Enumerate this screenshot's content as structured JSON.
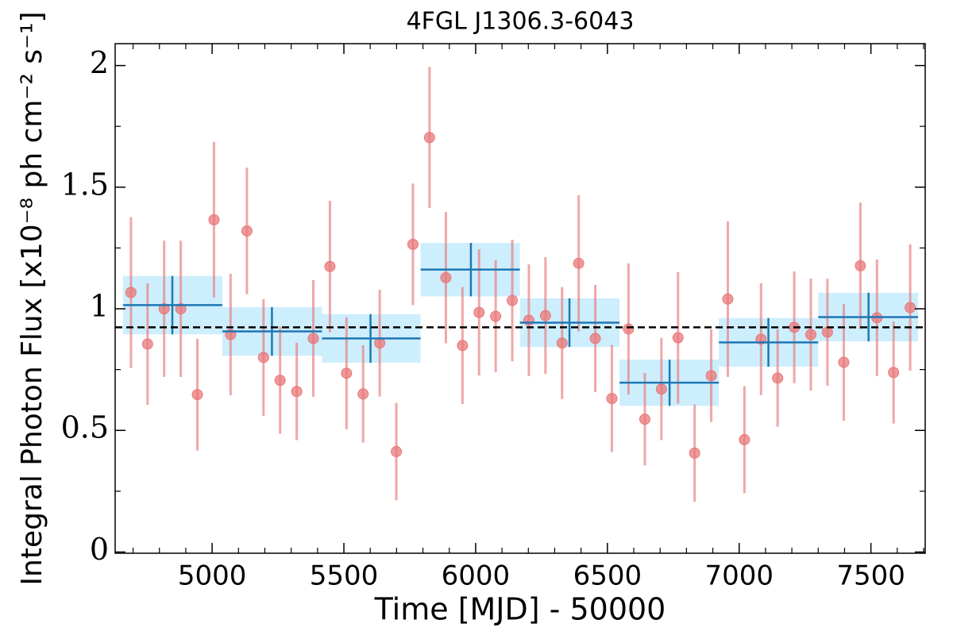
{
  "chart_data": {
    "type": "lightcurve",
    "title": "4FGL J1306.3-6043",
    "xlabel": "Time [MJD] - 50000",
    "ylabel": "Integral Photon Flux [x10⁻⁸ ph cm⁻² s⁻¹]",
    "xlim": [
      4632,
      7706
    ],
    "ylim": [
      -0.005,
      2.09
    ],
    "xticks": [
      5000,
      5500,
      6000,
      6500,
      7000,
      7500
    ],
    "yticks": [
      0,
      0.5,
      1,
      1.5,
      2
    ],
    "xminorticks": [
      4700,
      4800,
      4900,
      5100,
      5200,
      5300,
      5400,
      5600,
      5700,
      5800,
      5900,
      6100,
      6200,
      6300,
      6400,
      6600,
      6700,
      6800,
      6900,
      7100,
      7200,
      7300,
      7400,
      7600,
      7700
    ],
    "yminorticks": [
      0.25,
      0.75,
      1.25,
      1.75
    ],
    "points": {
      "color": "#e8787a",
      "x": [
        4692,
        4755,
        4818,
        4881,
        4944,
        5007,
        5070,
        5132,
        5195,
        5258,
        5321,
        5384,
        5447,
        5510,
        5573,
        5636,
        5699,
        5762,
        5825,
        5887,
        5950,
        6013,
        6076,
        6139,
        6202,
        6265,
        6328,
        6391,
        6454,
        6517,
        6580,
        6642,
        6705,
        6768,
        6831,
        6894,
        6957,
        7020,
        7083,
        7146,
        7209,
        7272,
        7335,
        7397,
        7460,
        7523,
        7586,
        7649
      ],
      "values": [
        1.067,
        0.855,
        1.0,
        1.0,
        0.647,
        1.366,
        0.894,
        1.32,
        0.8,
        0.706,
        0.66,
        0.878,
        1.174,
        0.735,
        0.65,
        0.859,
        0.413,
        1.265,
        1.704,
        1.128,
        0.849,
        0.985,
        0.969,
        1.034,
        0.953,
        0.972,
        0.859,
        1.187,
        0.878,
        0.631,
        0.917,
        0.546,
        0.67,
        0.881,
        0.407,
        0.725,
        1.04,
        0.462,
        0.875,
        0.715,
        0.924,
        0.894,
        0.904,
        0.78,
        1.177,
        0.963,
        0.738,
        1.005
      ],
      "errors": [
        0.31,
        0.25,
        0.28,
        0.28,
        0.23,
        0.32,
        0.25,
        0.26,
        0.24,
        0.22,
        0.2,
        0.24,
        0.27,
        0.23,
        0.2,
        0.22,
        0.2,
        0.25,
        0.29,
        0.27,
        0.24,
        0.26,
        0.23,
        0.25,
        0.23,
        0.24,
        0.23,
        0.28,
        0.22,
        0.22,
        0.27,
        0.19,
        0.21,
        0.27,
        0.2,
        0.19,
        0.32,
        0.22,
        0.23,
        0.2,
        0.23,
        0.23,
        0.22,
        0.24,
        0.26,
        0.24,
        0.21,
        0.26
      ]
    },
    "bins": {
      "color": "#1f77b4",
      "band_color": "#cdeefd",
      "x_start": [
        4662,
        5039,
        5417,
        5791,
        6168,
        6546,
        6923,
        7300
      ],
      "x_end": [
        5039,
        5417,
        5791,
        6168,
        6546,
        6923,
        7300,
        7679
      ],
      "x": [
        4849,
        5227,
        5601,
        5982,
        6356,
        6736,
        7111,
        7491
      ],
      "values": [
        1.015,
        0.907,
        0.878,
        1.161,
        0.943,
        0.696,
        0.862,
        0.966
      ],
      "errors": [
        0.12,
        0.1,
        0.1,
        0.11,
        0.1,
        0.095,
        0.1,
        0.1
      ]
    },
    "reference_line": {
      "value": 0.924,
      "color": "#000000"
    }
  }
}
